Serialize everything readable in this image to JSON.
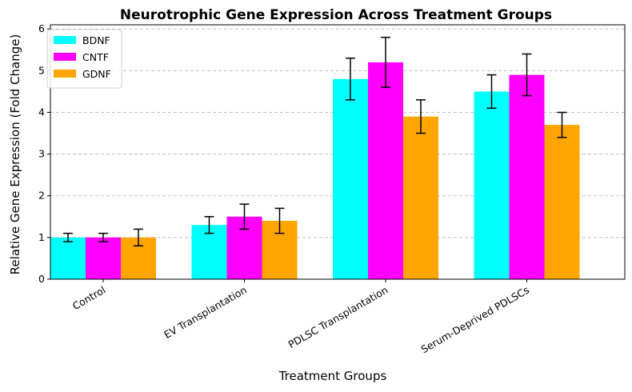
{
  "chart_data": {
    "type": "bar",
    "title": "Neurotrophic Gene Expression Across Treatment Groups",
    "xlabel": "Treatment Groups",
    "ylabel": "Relative Gene Expression (Fold Change)",
    "ylim": [
      0,
      6.1
    ],
    "yticks": [
      "0",
      "1",
      "2",
      "3",
      "4",
      "5",
      "6"
    ],
    "grid": "y-dashed",
    "legend_position": "top-left",
    "categories": [
      "Control",
      "EV Transplantation",
      "PDLSC Transplantation",
      "Serum-Deprived PDLSCs"
    ],
    "series": [
      {
        "name": "BDNF",
        "color": "#00ffff",
        "values": [
          1.0,
          1.3,
          4.8,
          4.5
        ],
        "errors": [
          0.1,
          0.2,
          0.5,
          0.4
        ]
      },
      {
        "name": "CNTF",
        "color": "#ff00ff",
        "values": [
          1.0,
          1.5,
          5.2,
          4.9
        ],
        "errors": [
          0.1,
          0.3,
          0.6,
          0.5
        ]
      },
      {
        "name": "GDNF",
        "color": "#ffa500",
        "values": [
          1.0,
          1.4,
          3.9,
          3.7
        ],
        "errors": [
          0.2,
          0.3,
          0.4,
          0.3
        ]
      }
    ]
  }
}
